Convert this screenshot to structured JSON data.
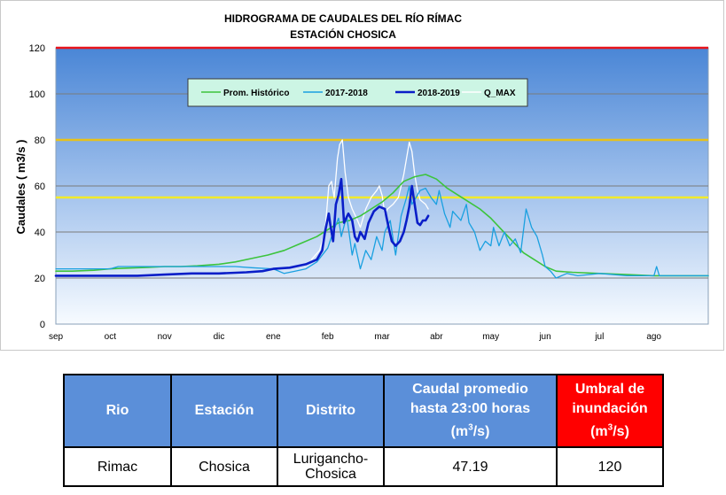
{
  "chart_data": {
    "type": "line",
    "title": "HIDROGRAMA DE CAUDALES DEL RÍO RÍMAC",
    "subtitle": "ESTACIÓN CHOSICA",
    "ylabel": "Caudales ( m3/s )",
    "xlabel": "",
    "ylim": [
      0,
      120
    ],
    "xlim": [
      0,
      12
    ],
    "yticks": [
      0,
      20,
      40,
      60,
      80,
      100,
      120
    ],
    "months": [
      "sep",
      "oct",
      "nov",
      "dic",
      "ene",
      "feb",
      "mar",
      "abr",
      "may",
      "jun",
      "jul",
      "ago"
    ],
    "legend": {
      "position": "top-center",
      "entries": [
        "Prom. Histórico",
        "2017-2018",
        "2018-2019",
        "Q_MAX"
      ]
    },
    "reference_lines": [
      {
        "value": 120,
        "color": "#e8141b"
      },
      {
        "value": 80,
        "color": "#e8c21a"
      },
      {
        "value": 55,
        "color": "#f2ea2a"
      }
    ],
    "series": [
      {
        "name": "Prom. Histórico",
        "color": "#3cc43c",
        "width": 1.6,
        "points": [
          [
            0,
            23
          ],
          [
            0.3,
            23
          ],
          [
            0.7,
            23.4
          ],
          [
            1,
            24
          ],
          [
            1.3,
            24.3
          ],
          [
            1.7,
            24.6
          ],
          [
            2,
            25
          ],
          [
            2.3,
            25
          ],
          [
            2.6,
            25.3
          ],
          [
            3,
            26
          ],
          [
            3.3,
            27
          ],
          [
            3.6,
            28.5
          ],
          [
            3.9,
            30
          ],
          [
            4.2,
            32
          ],
          [
            4.5,
            35
          ],
          [
            4.8,
            38
          ],
          [
            5,
            41
          ],
          [
            5.2,
            44
          ],
          [
            5.4,
            45
          ],
          [
            5.6,
            47
          ],
          [
            5.8,
            50
          ],
          [
            6,
            53
          ],
          [
            6.2,
            57
          ],
          [
            6.4,
            62
          ],
          [
            6.6,
            64
          ],
          [
            6.8,
            65
          ],
          [
            7,
            63
          ],
          [
            7.2,
            59
          ],
          [
            7.4,
            56
          ],
          [
            7.6,
            53
          ],
          [
            7.8,
            50
          ],
          [
            8,
            46
          ],
          [
            8.2,
            41
          ],
          [
            8.4,
            36
          ],
          [
            8.6,
            31
          ],
          [
            8.8,
            28
          ],
          [
            9,
            25
          ],
          [
            9.2,
            23
          ],
          [
            9.5,
            22.5
          ],
          [
            10,
            22
          ],
          [
            10.5,
            21.5
          ],
          [
            11,
            21
          ],
          [
            11.5,
            21
          ],
          [
            12,
            21
          ]
        ]
      },
      {
        "name": "2017-2018",
        "color": "#1aa0e0",
        "width": 1.3,
        "points": [
          [
            0,
            24
          ],
          [
            0.5,
            24
          ],
          [
            1,
            24
          ],
          [
            1.15,
            25
          ],
          [
            1.5,
            25
          ],
          [
            2,
            25
          ],
          [
            2.5,
            25
          ],
          [
            3,
            25
          ],
          [
            3.3,
            25
          ],
          [
            3.6,
            24.5
          ],
          [
            4,
            24
          ],
          [
            4.2,
            22
          ],
          [
            4.4,
            23
          ],
          [
            4.6,
            24
          ],
          [
            4.8,
            27
          ],
          [
            5,
            33
          ],
          [
            5.1,
            40
          ],
          [
            5.2,
            46
          ],
          [
            5.25,
            38
          ],
          [
            5.35,
            47
          ],
          [
            5.45,
            30
          ],
          [
            5.5,
            35
          ],
          [
            5.6,
            24
          ],
          [
            5.7,
            32
          ],
          [
            5.8,
            28
          ],
          [
            5.9,
            38
          ],
          [
            6,
            32
          ],
          [
            6.05,
            40
          ],
          [
            6.15,
            45
          ],
          [
            6.25,
            30
          ],
          [
            6.35,
            47
          ],
          [
            6.45,
            55
          ],
          [
            6.5,
            60
          ],
          [
            6.55,
            52
          ],
          [
            6.7,
            58
          ],
          [
            6.8,
            59
          ],
          [
            6.9,
            55
          ],
          [
            7,
            52
          ],
          [
            7.05,
            58
          ],
          [
            7.15,
            48
          ],
          [
            7.25,
            42
          ],
          [
            7.3,
            49
          ],
          [
            7.45,
            45
          ],
          [
            7.55,
            52
          ],
          [
            7.6,
            44
          ],
          [
            7.7,
            40
          ],
          [
            7.8,
            32
          ],
          [
            7.9,
            36
          ],
          [
            8,
            34
          ],
          [
            8.05,
            42
          ],
          [
            8.15,
            34
          ],
          [
            8.25,
            40
          ],
          [
            8.35,
            34
          ],
          [
            8.45,
            37
          ],
          [
            8.55,
            31
          ],
          [
            8.65,
            50
          ],
          [
            8.75,
            42
          ],
          [
            8.85,
            38
          ],
          [
            8.95,
            30
          ],
          [
            9,
            25
          ],
          [
            9.1,
            23
          ],
          [
            9.2,
            20
          ],
          [
            9.4,
            22
          ],
          [
            9.6,
            21
          ],
          [
            10,
            22
          ],
          [
            10.5,
            21
          ],
          [
            11,
            21
          ],
          [
            11.05,
            25
          ],
          [
            11.1,
            21
          ],
          [
            11.5,
            21
          ],
          [
            12,
            21
          ]
        ]
      },
      {
        "name": "2018-2019",
        "color": "#0a1ec8",
        "width": 2.6,
        "points": [
          [
            0,
            21
          ],
          [
            0.5,
            21
          ],
          [
            1,
            21
          ],
          [
            1.5,
            21
          ],
          [
            2,
            21.5
          ],
          [
            2.5,
            22
          ],
          [
            3,
            22
          ],
          [
            3.5,
            22.5
          ],
          [
            3.8,
            23
          ],
          [
            4,
            24
          ],
          [
            4.3,
            24.5
          ],
          [
            4.6,
            26
          ],
          [
            4.8,
            28
          ],
          [
            4.9,
            32
          ],
          [
            4.95,
            40
          ],
          [
            5.02,
            48
          ],
          [
            5.05,
            43
          ],
          [
            5.1,
            36
          ],
          [
            5.15,
            52
          ],
          [
            5.2,
            56
          ],
          [
            5.25,
            63
          ],
          [
            5.3,
            44
          ],
          [
            5.38,
            48
          ],
          [
            5.45,
            45
          ],
          [
            5.5,
            38
          ],
          [
            5.55,
            36
          ],
          [
            5.6,
            40
          ],
          [
            5.68,
            37
          ],
          [
            5.75,
            44
          ],
          [
            5.85,
            49
          ],
          [
            5.95,
            51
          ],
          [
            6.05,
            50
          ],
          [
            6.12,
            42
          ],
          [
            6.18,
            36
          ],
          [
            6.25,
            34
          ],
          [
            6.33,
            36
          ],
          [
            6.4,
            40
          ],
          [
            6.45,
            45
          ],
          [
            6.5,
            51
          ],
          [
            6.55,
            60
          ],
          [
            6.6,
            52
          ],
          [
            6.65,
            44
          ],
          [
            6.7,
            43
          ],
          [
            6.75,
            45
          ],
          [
            6.8,
            45
          ],
          [
            6.85,
            47
          ]
        ]
      },
      {
        "name": "Q_MAX",
        "color": "#ffffff",
        "width": 1.3,
        "points": [
          [
            4.7,
            28
          ],
          [
            4.85,
            32
          ],
          [
            4.95,
            40
          ],
          [
            5.02,
            60
          ],
          [
            5.07,
            62
          ],
          [
            5.12,
            55
          ],
          [
            5.18,
            72
          ],
          [
            5.22,
            78
          ],
          [
            5.27,
            80
          ],
          [
            5.32,
            66
          ],
          [
            5.38,
            55
          ],
          [
            5.45,
            50
          ],
          [
            5.55,
            45
          ],
          [
            5.6,
            42
          ],
          [
            5.7,
            50
          ],
          [
            5.8,
            55
          ],
          [
            5.9,
            58
          ],
          [
            5.95,
            60
          ],
          [
            6,
            56
          ],
          [
            6.05,
            48
          ],
          [
            6.1,
            50
          ],
          [
            6.2,
            52
          ],
          [
            6.3,
            55
          ],
          [
            6.35,
            60
          ],
          [
            6.4,
            65
          ],
          [
            6.45,
            72
          ],
          [
            6.5,
            79
          ],
          [
            6.55,
            75
          ],
          [
            6.6,
            65
          ],
          [
            6.65,
            58
          ],
          [
            6.7,
            54
          ],
          [
            6.8,
            52
          ],
          [
            6.85,
            50
          ]
        ]
      }
    ]
  },
  "table": {
    "headers": {
      "rio": "Rio",
      "estacion": "Estación",
      "distrito": "Distrito",
      "caudal_line1": "Caudal promedio",
      "caudal_line2": "hasta 23:00 horas",
      "caudal_unit_pre": "(m",
      "caudal_unit_sup": "3",
      "caudal_unit_post": "/s)",
      "umbral_line1": "Umbral de",
      "umbral_line2": "inundación",
      "umbral_unit_pre": "(m",
      "umbral_unit_sup": "3",
      "umbral_unit_post": "/s)"
    },
    "row": {
      "rio": "Rimac",
      "estacion": "Chosica",
      "distrito_line1": "Lurigancho-",
      "distrito_line2": "Chosica",
      "caudal": "47.19",
      "umbral": "120"
    }
  }
}
